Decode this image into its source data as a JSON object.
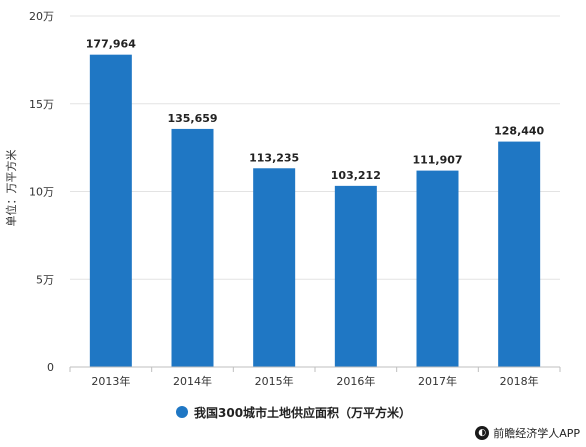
{
  "chart_data": {
    "type": "bar",
    "categories": [
      "2013年",
      "2014年",
      "2015年",
      "2016年",
      "2017年",
      "2018年"
    ],
    "series": [
      {
        "name": "我国300城市土地供应面积（万平方米）",
        "values": [
          177964,
          135659,
          113235,
          103212,
          111907,
          128440
        ]
      }
    ],
    "data_labels": [
      "177,964",
      "135,659",
      "113,235",
      "103,212",
      "111,907",
      "128,440"
    ],
    "ylabel": "单位：万平方米",
    "ylim": [
      0,
      200000
    ],
    "yticks": [
      {
        "value": 0,
        "label": "0"
      },
      {
        "value": 50000,
        "label": "5万"
      },
      {
        "value": 100000,
        "label": "10万"
      },
      {
        "value": 150000,
        "label": "15万"
      },
      {
        "value": 200000,
        "label": "20万"
      }
    ],
    "grid": true,
    "legend_position": "bottom",
    "bar_color": "#1f77c4"
  },
  "legend": {
    "label": "我国300城市土地供应面积（万平方米）"
  },
  "source": {
    "label": "前瞻经济学人APP",
    "icon": "logo-icon"
  }
}
